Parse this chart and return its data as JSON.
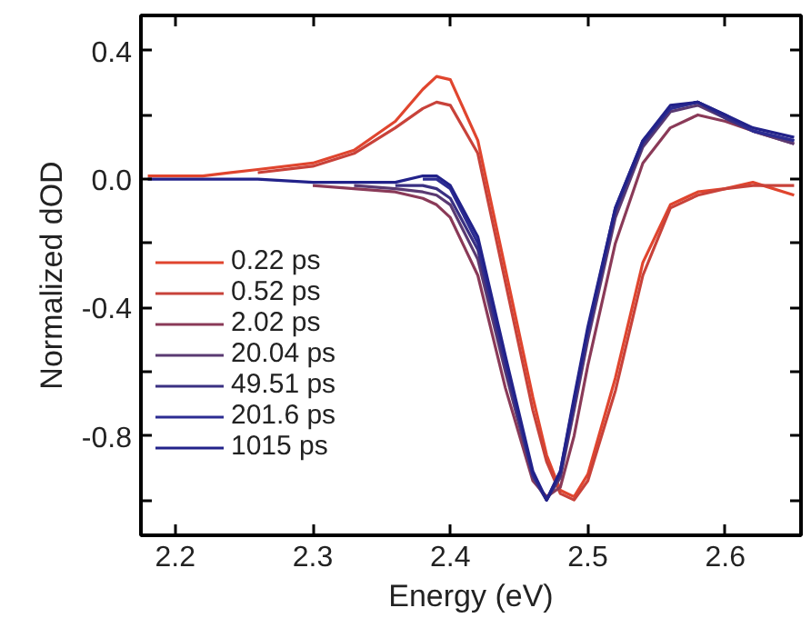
{
  "chart_data": {
    "type": "line",
    "xlabel": "Energy (eV)",
    "ylabel": "Normalized dOD",
    "x": [
      2.18,
      2.22,
      2.26,
      2.3,
      2.33,
      2.36,
      2.38,
      2.39,
      2.4,
      2.42,
      2.44,
      2.46,
      2.47,
      2.48,
      2.49,
      2.5,
      2.52,
      2.54,
      2.56,
      2.58,
      2.6,
      2.62,
      2.65
    ],
    "series": [
      {
        "name": "0.22 ps",
        "color": "#e0452e",
        "values": [
          0.01,
          0.01,
          0.03,
          0.05,
          0.09,
          0.18,
          0.28,
          0.32,
          0.31,
          0.12,
          -0.28,
          -0.68,
          -0.86,
          -0.97,
          -0.99,
          -0.92,
          -0.62,
          -0.26,
          -0.08,
          -0.04,
          -0.03,
          -0.01,
          -0.05
        ]
      },
      {
        "name": "0.52 ps",
        "color": "#c8423a",
        "x": [
          2.26,
          2.3,
          2.33,
          2.36,
          2.38,
          2.39,
          2.4,
          2.42,
          2.44,
          2.46,
          2.47,
          2.48,
          2.49,
          2.5,
          2.52,
          2.54,
          2.56,
          2.58,
          2.6,
          2.62,
          2.65
        ],
        "values": [
          0.02,
          0.04,
          0.08,
          0.16,
          0.22,
          0.24,
          0.23,
          0.08,
          -0.32,
          -0.72,
          -0.88,
          -0.98,
          -1.0,
          -0.94,
          -0.66,
          -0.3,
          -0.09,
          -0.05,
          -0.03,
          -0.02,
          -0.02
        ]
      },
      {
        "name": "2.02 ps",
        "color": "#8a3a58",
        "x": [
          2.3,
          2.33,
          2.36,
          2.38,
          2.39,
          2.4,
          2.42,
          2.44,
          2.46,
          2.47,
          2.48,
          2.49,
          2.5,
          2.52,
          2.54,
          2.56,
          2.58,
          2.6,
          2.62,
          2.65
        ],
        "values": [
          -0.02,
          -0.03,
          -0.04,
          -0.06,
          -0.08,
          -0.12,
          -0.3,
          -0.65,
          -0.94,
          -0.99,
          -0.96,
          -0.8,
          -0.58,
          -0.2,
          0.05,
          0.16,
          0.2,
          0.18,
          0.15,
          0.11
        ]
      },
      {
        "name": "20.04 ps",
        "color": "#5a3a72",
        "x": [
          2.33,
          2.36,
          2.38,
          2.39,
          2.4,
          2.42,
          2.44,
          2.46,
          2.47,
          2.48,
          2.49,
          2.5,
          2.52,
          2.54,
          2.56,
          2.58,
          2.6,
          2.62,
          2.65
        ],
        "values": [
          -0.02,
          -0.03,
          -0.04,
          -0.05,
          -0.08,
          -0.25,
          -0.6,
          -0.93,
          -1.0,
          -0.93,
          -0.72,
          -0.5,
          -0.12,
          0.1,
          0.21,
          0.23,
          0.19,
          0.15,
          0.11
        ]
      },
      {
        "name": "49.51 ps",
        "color": "#3a3082",
        "x": [
          2.36,
          2.38,
          2.39,
          2.4,
          2.42,
          2.44,
          2.46,
          2.47,
          2.48,
          2.49,
          2.5,
          2.52,
          2.54,
          2.56,
          2.58,
          2.6,
          2.62,
          2.65
        ],
        "values": [
          -0.02,
          -0.02,
          -0.03,
          -0.06,
          -0.22,
          -0.58,
          -0.92,
          -1.0,
          -0.92,
          -0.7,
          -0.48,
          -0.1,
          0.11,
          0.22,
          0.24,
          0.19,
          0.15,
          0.12
        ]
      },
      {
        "name": "201.6 ps",
        "color": "#2c2c92",
        "x": [
          2.38,
          2.39,
          2.4,
          2.42,
          2.44,
          2.46,
          2.47,
          2.48,
          2.49,
          2.5,
          2.52,
          2.54,
          2.56,
          2.58,
          2.6,
          2.62,
          2.65
        ],
        "values": [
          0.0,
          0.0,
          -0.03,
          -0.2,
          -0.56,
          -0.92,
          -1.0,
          -0.91,
          -0.69,
          -0.47,
          -0.09,
          0.12,
          0.22,
          0.24,
          0.2,
          0.15,
          0.12
        ]
      },
      {
        "name": "1015 ps",
        "color": "#22228a",
        "values": [
          0.0,
          0.0,
          0.0,
          -0.01,
          -0.01,
          -0.01,
          0.01,
          0.01,
          -0.02,
          -0.18,
          -0.55,
          -0.91,
          -1.0,
          -0.91,
          -0.68,
          -0.46,
          -0.09,
          0.12,
          0.23,
          0.24,
          0.2,
          0.16,
          0.13
        ]
      }
    ],
    "xlim": [
      2.175,
      2.655
    ],
    "ylim": [
      -1.11,
      0.51
    ],
    "xticks": [
      2.2,
      2.3,
      2.4,
      2.5,
      2.6
    ],
    "yticks": [
      0.4,
      {
        "value": 0.2,
        "label": null
      },
      {
        "value": 0.0,
        "label": "0.0"
      },
      {
        "value": -0.2,
        "label": null
      },
      -0.4,
      {
        "value": -0.6,
        "label": null
      },
      -0.8,
      {
        "value": -1.0,
        "label": null
      }
    ],
    "grid": false,
    "legend": "center left",
    "marker": "none",
    "line_style": "solid"
  }
}
